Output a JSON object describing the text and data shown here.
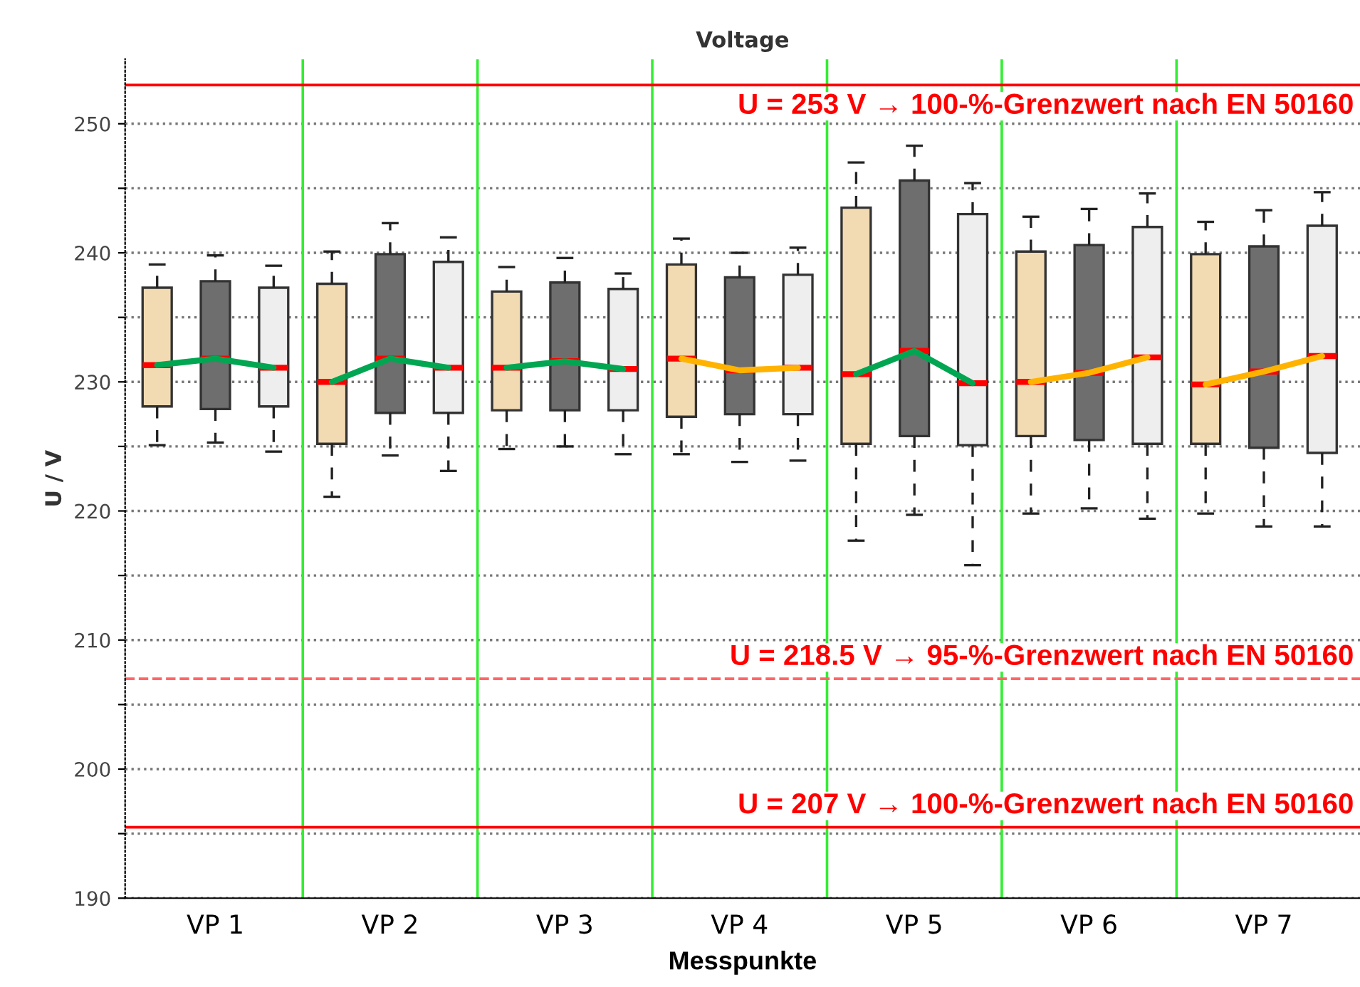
{
  "chart_data": {
    "type": "box",
    "title": "Voltage",
    "xlabel": "Messpunkte",
    "ylabel": "U / V",
    "categories": [
      null,
      "VP 1",
      null,
      null,
      "VP 2",
      null,
      null,
      "VP 3",
      null,
      null,
      "VP 4",
      null,
      null,
      "VP 5",
      null,
      null,
      "VP 6",
      null,
      null,
      "VP 7",
      null
    ],
    "ylim": [
      190,
      255
    ],
    "yticks": [
      190,
      {
        "value": 195,
        "label": null
      },
      200,
      {
        "value": 205,
        "label": null
      },
      210,
      {
        "value": 215,
        "label": null
      },
      220,
      {
        "value": 225,
        "label": null
      },
      230,
      {
        "value": 235,
        "label": null
      },
      240,
      {
        "value": 245,
        "label": null
      },
      250
    ],
    "grid": "y",
    "legend": false,
    "series": [
      {
        "colors": [
          "#f2dab2",
          "#6e6e6e",
          "#eeeeee",
          "#f2dab2",
          "#6e6e6e",
          "#eeeeee",
          "#f2dab2",
          "#6e6e6e",
          "#eeeeee",
          "#f2dab2",
          "#6e6e6e",
          "#eeeeee",
          "#f2dab2",
          "#6e6e6e",
          "#eeeeee",
          "#f2dab2",
          "#6e6e6e",
          "#eeeeee",
          "#f2dab2",
          "#6e6e6e",
          "#eeeeee"
        ],
        "boxes": [
          {
            "low": 225.1,
            "q1": 228.1,
            "median": 231.3,
            "q3": 237.3,
            "high": 239.1
          },
          {
            "low": 225.3,
            "q1": 227.9,
            "median": 231.8,
            "q3": 237.8,
            "high": 239.8
          },
          {
            "low": 224.6,
            "q1": 228.1,
            "median": 231.1,
            "q3": 237.3,
            "high": 239.0
          },
          {
            "low": 221.1,
            "q1": 225.2,
            "median": 230.0,
            "q3": 237.6,
            "high": 240.1
          },
          {
            "low": 224.3,
            "q1": 227.6,
            "median": 231.8,
            "q3": 239.9,
            "high": 242.3
          },
          {
            "low": 223.1,
            "q1": 227.6,
            "median": 231.1,
            "q3": 239.3,
            "high": 241.2
          },
          {
            "low": 224.8,
            "q1": 227.8,
            "median": 231.1,
            "q3": 237.0,
            "high": 238.9
          },
          {
            "low": 225.0,
            "q1": 227.8,
            "median": 231.6,
            "q3": 237.7,
            "high": 239.6
          },
          {
            "low": 224.4,
            "q1": 227.8,
            "median": 231.0,
            "q3": 237.2,
            "high": 238.4
          },
          {
            "low": 224.4,
            "q1": 227.3,
            "median": 231.8,
            "q3": 239.1,
            "high": 241.1
          },
          {
            "low": 223.8,
            "q1": 227.5,
            "median": 230.9,
            "q3": 238.1,
            "high": 240.0
          },
          {
            "low": 223.9,
            "q1": 227.5,
            "median": 231.1,
            "q3": 238.3,
            "high": 240.4
          },
          {
            "low": 217.7,
            "q1": 225.2,
            "median": 230.6,
            "q3": 243.5,
            "high": 247.0
          },
          {
            "low": 219.7,
            "q1": 225.8,
            "median": 232.4,
            "q3": 245.6,
            "high": 248.3
          },
          {
            "low": 215.8,
            "q1": 225.1,
            "median": 229.9,
            "q3": 243.0,
            "high": 245.4
          },
          {
            "low": 219.8,
            "q1": 225.8,
            "median": 230.0,
            "q3": 240.1,
            "high": 242.8
          },
          {
            "low": 220.2,
            "q1": 225.5,
            "median": 230.7,
            "q3": 240.6,
            "high": 243.4
          },
          {
            "low": 219.4,
            "q1": 225.2,
            "median": 231.9,
            "q3": 242.0,
            "high": 244.6
          },
          {
            "low": 219.8,
            "q1": 225.2,
            "median": 229.8,
            "q3": 239.9,
            "high": 242.4
          },
          {
            "low": 218.8,
            "q1": 224.9,
            "median": 230.8,
            "q3": 240.5,
            "high": 243.3
          },
          {
            "low": 218.8,
            "q1": 224.5,
            "median": 232.0,
            "q3": 242.1,
            "high": 244.7
          }
        ]
      },
      {
        "type": "line",
        "color": "#00a651",
        "values": [
          231.3,
          231.8,
          231.1,
          230.0,
          231.8,
          231.1,
          231.1,
          231.6,
          231.0,
          null,
          null,
          null,
          230.6,
          232.4,
          229.9,
          null,
          null,
          null,
          null,
          null,
          null
        ]
      },
      {
        "type": "line",
        "color": "#ffb300",
        "values": [
          null,
          null,
          null,
          null,
          null,
          null,
          null,
          null,
          null,
          231.8,
          230.9,
          231.1,
          null,
          null,
          null,
          230.0,
          230.7,
          231.9,
          229.8,
          230.8,
          232.0
        ]
      }
    ],
    "ref_lines": [
      {
        "axis": "y",
        "value": 253,
        "color": "#ff0000",
        "line_style": "solid"
      },
      {
        "axis": "y",
        "value": 207,
        "color": "#ff6666",
        "line_style": "dashed"
      },
      {
        "axis": "y",
        "value": 195.5,
        "color": "#ff0000",
        "line_style": "solid"
      }
    ],
    "annotations": [
      "U = 253 V → 100-%-Grenzwert nach EN 50160",
      "U = 218.5 V → 95-%-Grenzwert nach EN 50160",
      "U = 207 V → 100-%-Grenzwert nach EN 50160"
    ]
  }
}
